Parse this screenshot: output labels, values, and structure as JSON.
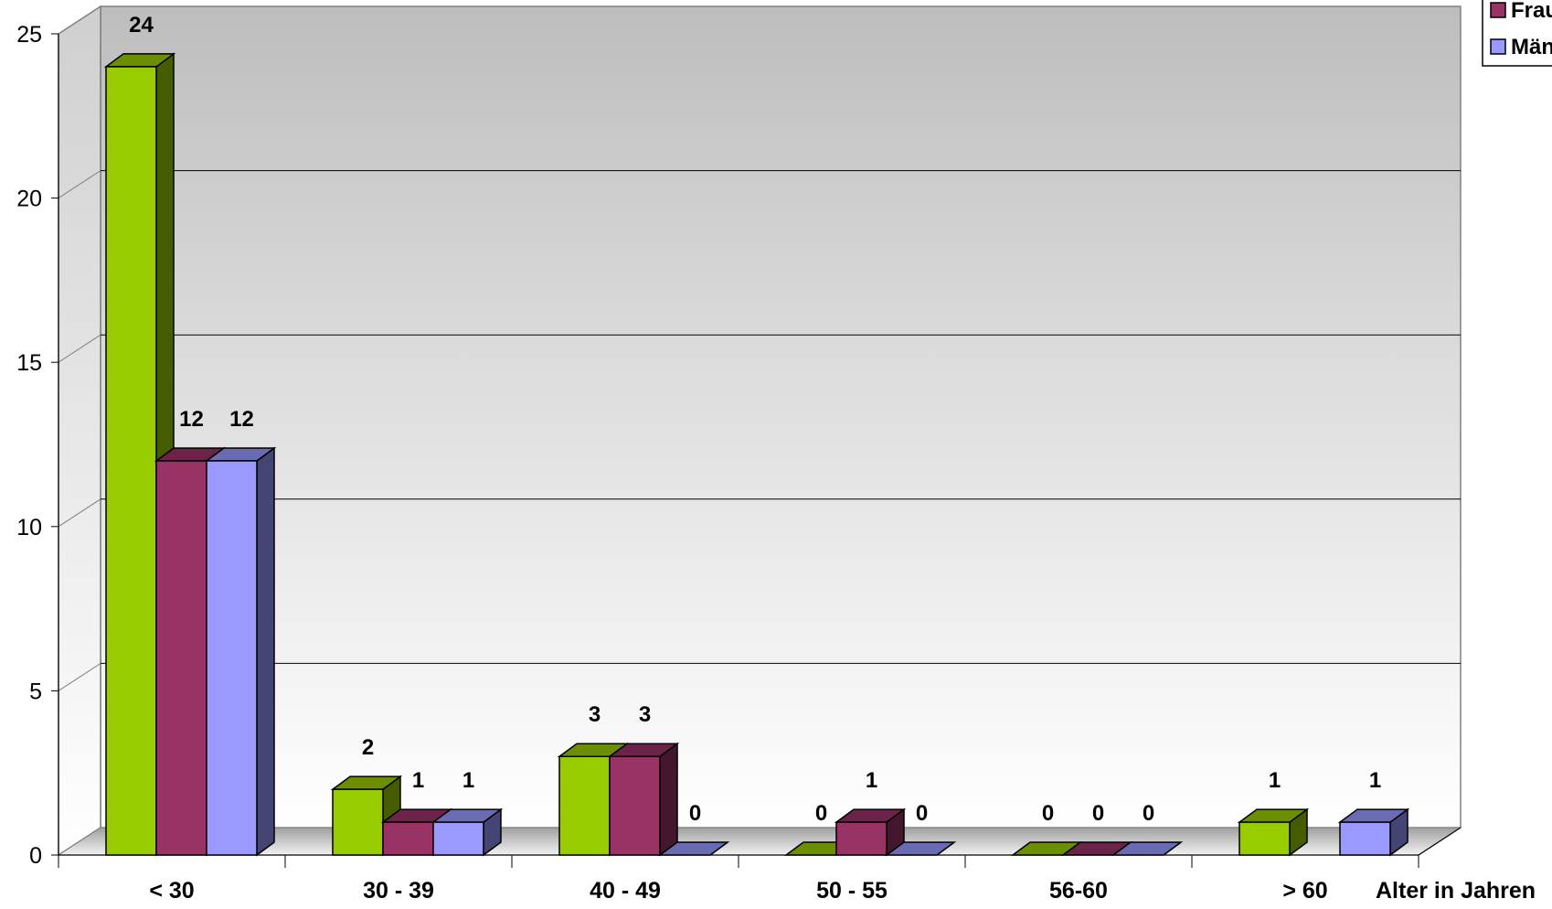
{
  "chart_data": {
    "type": "bar",
    "title": "",
    "xlabel": "Alter in Jahren",
    "ylabel": "",
    "ylim": [
      0,
      25
    ],
    "yticks": [
      "0",
      "5",
      "10",
      "15",
      "20",
      "25"
    ],
    "grid": true,
    "legend_position": "top-right",
    "categories": [
      "< 30",
      "30 - 39",
      "40 - 49",
      "50 - 55",
      "56-60",
      "> 60"
    ],
    "series": [
      {
        "name": "",
        "color": "#99cc00",
        "values": [
          24,
          2,
          3,
          0,
          0,
          1
        ],
        "labels": [
          "24",
          "2",
          "3",
          "0",
          "0",
          "1"
        ]
      },
      {
        "name": "Frau",
        "color": "#993366",
        "values": [
          12,
          1,
          3,
          1,
          0,
          null
        ],
        "labels": [
          "12",
          "1",
          "3",
          "1",
          "0",
          ""
        ]
      },
      {
        "name": "Män",
        "color": "#9999ff",
        "values": [
          12,
          1,
          0,
          0,
          0,
          1
        ],
        "labels": [
          "12",
          "1",
          "0",
          "0",
          "0",
          "1"
        ]
      }
    ]
  }
}
